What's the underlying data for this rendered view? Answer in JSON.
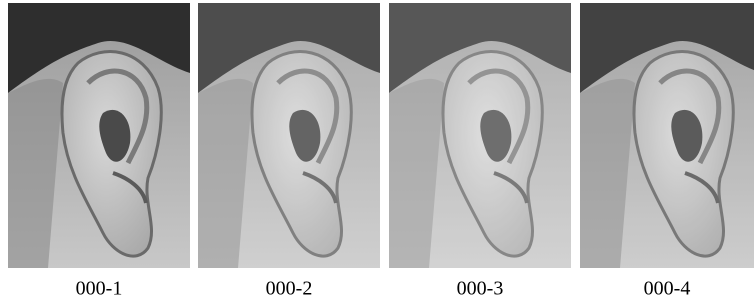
{
  "images": [
    {
      "caption": "000-1"
    },
    {
      "caption": "000-2"
    },
    {
      "caption": "000-3"
    },
    {
      "caption": "000-4"
    }
  ]
}
